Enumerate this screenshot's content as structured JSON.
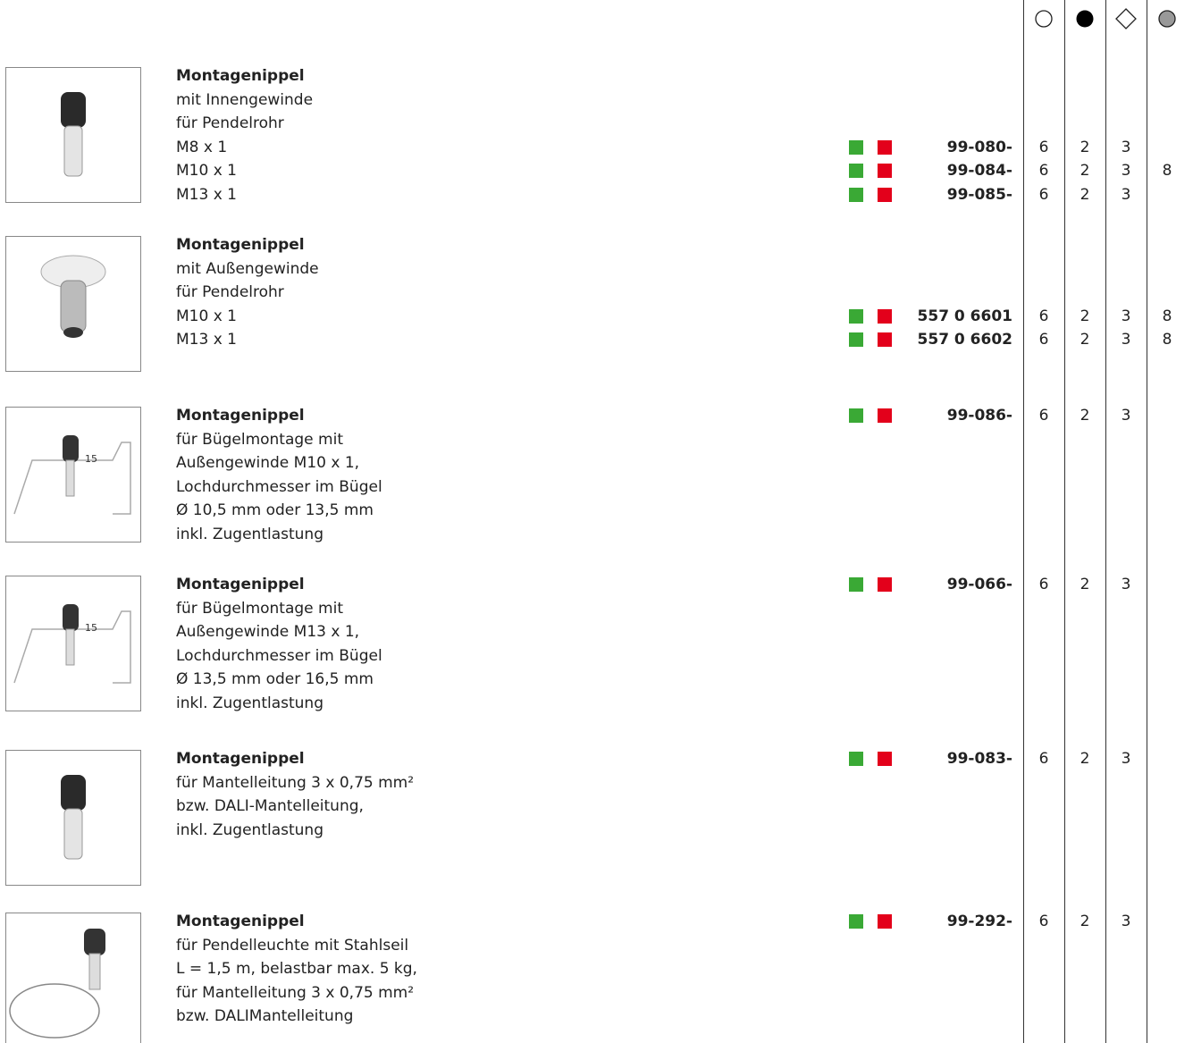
{
  "products": [
    {
      "image_label": null,
      "rows": [
        {
          "text": "Montagenippel"
        },
        {
          "text": "mit Innengewinde"
        },
        {
          "text": "für Pendelrohr"
        },
        {
          "text": "M8 x 1",
          "code": "99-080-",
          "cols": [
            "6",
            "2",
            "3",
            null
          ]
        },
        {
          "text": "M10 x 1",
          "code": "99-084-",
          "cols": [
            "6",
            "2",
            "3",
            "8"
          ]
        },
        {
          "text": "M13 x 1",
          "code": "99-085-",
          "cols": [
            "6",
            "2",
            "3",
            null
          ]
        }
      ]
    },
    {
      "image_label": null,
      "rows": [
        {
          "text": "Montagenippel"
        },
        {
          "text": "mit Außengewinde"
        },
        {
          "text": "für Pendelrohr"
        },
        {
          "text": "M10 x 1",
          "code": "557 0 6601",
          "cols": [
            "6",
            "2",
            "3",
            "8"
          ]
        },
        {
          "text": "M13 x 1",
          "code": "557 0 6602",
          "cols": [
            "6",
            "2",
            "3",
            "8"
          ]
        }
      ]
    },
    {
      "image_label": "15",
      "rows": [
        {
          "text": "Montagenippel",
          "code": "99-086-",
          "cols": [
            "6",
            "2",
            "3",
            null
          ]
        },
        {
          "text": "für Bügelmontage mit"
        },
        {
          "text": "Außengewinde M10 x 1,"
        },
        {
          "text": "Lochdurchmesser im Bügel"
        },
        {
          "text": "Ø 10,5 mm oder 13,5 mm"
        },
        {
          "text": "inkl. Zugentlastung"
        }
      ]
    },
    {
      "image_label": "15",
      "rows": [
        {
          "text": "Montagenippel",
          "code": "99-066-",
          "cols": [
            "6",
            "2",
            "3",
            null
          ]
        },
        {
          "text": "für Bügelmontage mit"
        },
        {
          "text": "Außengewinde M13 x 1,"
        },
        {
          "text": "Lochdurchmesser im Bügel"
        },
        {
          "text": "Ø 13,5 mm oder 16,5 mm"
        },
        {
          "text": "inkl. Zugentlastung"
        }
      ]
    },
    {
      "image_label": null,
      "rows": [
        {
          "text": "Montagenippel",
          "code": "99-083-",
          "cols": [
            "6",
            "2",
            "3",
            null
          ]
        },
        {
          "text": "für Mantelleitung 3 x 0,75 mm²"
        },
        {
          "text": "bzw. DALI-Mantelleitung,"
        },
        {
          "text": "inkl. Zugentlastung"
        }
      ]
    },
    {
      "image_label": null,
      "rows": [
        {
          "text": "Montagenippel",
          "code": "99-292-",
          "cols": [
            "6",
            "2",
            "3",
            null
          ]
        },
        {
          "text": "für Pendelleuchte mit Stahlseil"
        },
        {
          "text": "L = 1,5 m, belastbar max. 5 kg,"
        },
        {
          "text": "für Mantelleitung 3 x 0,75 mm²"
        },
        {
          "text": "bzw. DALIMantelleitung"
        }
      ]
    }
  ]
}
